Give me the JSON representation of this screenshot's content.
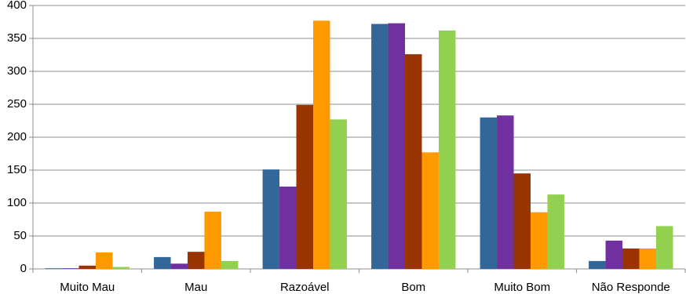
{
  "chart_data": {
    "type": "bar",
    "categories": [
      "Muito Mau",
      "Mau",
      "Razoável",
      "Bom",
      "Muito Bom",
      "Não Responde"
    ],
    "series": [
      {
        "color": "#336699",
        "values": [
          1,
          18,
          151,
          372,
          230,
          12
        ]
      },
      {
        "color": "#7030a0",
        "values": [
          1,
          8,
          125,
          373,
          233,
          43
        ]
      },
      {
        "color": "#993300",
        "values": [
          5,
          26,
          249,
          326,
          145,
          31
        ]
      },
      {
        "color": "#ff9900",
        "values": [
          25,
          87,
          377,
          177,
          86,
          31
        ]
      },
      {
        "color": "#92d050",
        "values": [
          3,
          12,
          227,
          362,
          113,
          65
        ]
      }
    ],
    "ylim": [
      0,
      400
    ],
    "yticks": [
      0,
      50,
      100,
      150,
      200,
      250,
      300,
      350,
      400
    ],
    "grid": true
  }
}
